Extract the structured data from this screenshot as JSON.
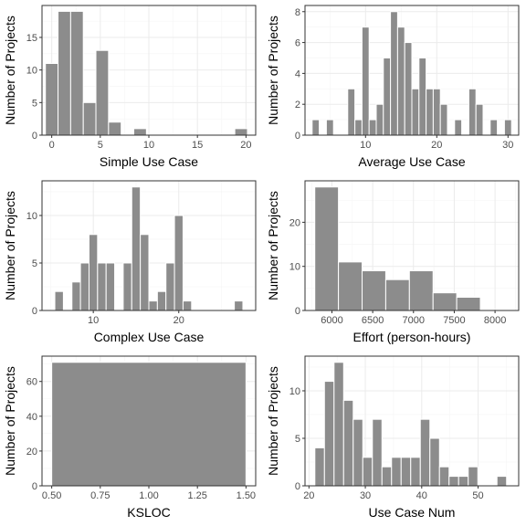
{
  "chart_data": [
    {
      "type": "bar",
      "xlabel": "Simple Use Case",
      "ylabel": "Number of Projects",
      "xlim": [
        -1,
        21
      ],
      "ylim": [
        0,
        19.9
      ],
      "xticks": [
        0,
        5,
        10,
        15,
        20
      ],
      "xtick_labels": [
        "0",
        "5",
        "10",
        "15",
        "20"
      ],
      "yticks": [
        0,
        5,
        10,
        15
      ],
      "ytick_labels": [
        "0",
        "5",
        "10",
        "15"
      ],
      "bin_width": 1.3,
      "x": [
        0,
        1.3,
        2.6,
        3.9,
        5.2,
        6.5,
        9.1,
        19.5
      ],
      "values": [
        11,
        19,
        19,
        5,
        13,
        2,
        1,
        1
      ]
    },
    {
      "type": "bar",
      "xlabel": "Average Use Case",
      "ylabel": "Number of Projects",
      "xlim": [
        1.5,
        31.5
      ],
      "ylim": [
        0,
        8.4
      ],
      "xticks": [
        10,
        20,
        30
      ],
      "xtick_labels": [
        "10",
        "20",
        "30"
      ],
      "yticks": [
        0,
        2,
        4,
        6,
        8
      ],
      "ytick_labels": [
        "0",
        "2",
        "4",
        "6",
        "8"
      ],
      "bin_width": 1,
      "x": [
        3,
        5,
        8,
        9,
        10,
        11,
        12,
        13,
        14,
        15,
        16,
        17,
        18,
        19,
        20,
        21,
        23,
        25,
        26,
        28,
        30
      ],
      "values": [
        1,
        1,
        3,
        1,
        7,
        1,
        2,
        5,
        8,
        7,
        6,
        3,
        5,
        3,
        3,
        2,
        1,
        3,
        2,
        1,
        1
      ]
    },
    {
      "type": "bar",
      "xlabel": "Complex Use Case",
      "ylabel": "Number of Projects",
      "xlim": [
        4,
        29
      ],
      "ylim": [
        0,
        13.65
      ],
      "xticks": [
        10,
        20
      ],
      "xtick_labels": [
        "10",
        "20"
      ],
      "yticks": [
        0,
        5,
        10
      ],
      "ytick_labels": [
        "0",
        "5",
        "10"
      ],
      "bin_width": 1,
      "x": [
        6,
        8,
        9,
        10,
        11,
        12,
        14,
        15,
        16,
        17,
        18,
        19,
        20,
        21,
        27
      ],
      "values": [
        2,
        3,
        5,
        8,
        5,
        5,
        5,
        13,
        8,
        1,
        2,
        5,
        10,
        1,
        1
      ]
    },
    {
      "type": "bar",
      "xlabel": "Effort (person-hours)",
      "ylabel": "Number of Projects",
      "xlim": [
        5670,
        8290
      ],
      "ylim": [
        0,
        29.4
      ],
      "xticks": [
        6000,
        6500,
        7000,
        7500,
        8000
      ],
      "xtick_labels": [
        "6000",
        "6500",
        "7000",
        "7500",
        "8000"
      ],
      "yticks": [
        0,
        10,
        20
      ],
      "ytick_labels": [
        "0",
        "10",
        "20"
      ],
      "bin_width": 290,
      "x": [
        5935,
        6225,
        6515,
        6805,
        7095,
        7385,
        7675,
        7965
      ],
      "values": [
        28,
        11,
        9,
        7,
        9,
        4,
        3,
        0
      ]
    },
    {
      "type": "bar",
      "xlabel": "KSLOC",
      "ylabel": "Number of Projects",
      "xlim": [
        0.45,
        1.55
      ],
      "ylim": [
        0,
        74.55
      ],
      "xticks": [
        0.5,
        0.75,
        1.0,
        1.25,
        1.5
      ],
      "xtick_labels": [
        "0.50",
        "0.75",
        "1.00",
        "1.25",
        "1.50"
      ],
      "yticks": [
        0,
        20,
        40,
        60
      ],
      "ytick_labels": [
        "0",
        "20",
        "40",
        "60"
      ],
      "bin_width": 1,
      "x": [
        1.0
      ],
      "values": [
        71
      ]
    },
    {
      "type": "bar",
      "xlabel": "Use Case Num",
      "ylabel": "Number of Projects",
      "xlim": [
        19.3,
        57.2
      ],
      "ylim": [
        0,
        13.65
      ],
      "xticks": [
        20,
        30,
        40,
        50
      ],
      "xtick_labels": [
        "20",
        "30",
        "40",
        "50"
      ],
      "yticks": [
        0,
        5,
        10
      ],
      "ytick_labels": [
        "0",
        "5",
        "10"
      ],
      "bin_width": 1.7,
      "x": [
        21.9,
        23.6,
        25.3,
        27.0,
        28.7,
        30.4,
        32.1,
        33.8,
        35.5,
        37.2,
        38.9,
        40.6,
        42.3,
        44.0,
        45.7,
        47.4,
        49.1,
        50.8,
        54.2
      ],
      "values": [
        4,
        11,
        13,
        9,
        7,
        3,
        7,
        2,
        3,
        3,
        3,
        7,
        5,
        2,
        1,
        1,
        2,
        0,
        1
      ]
    }
  ]
}
